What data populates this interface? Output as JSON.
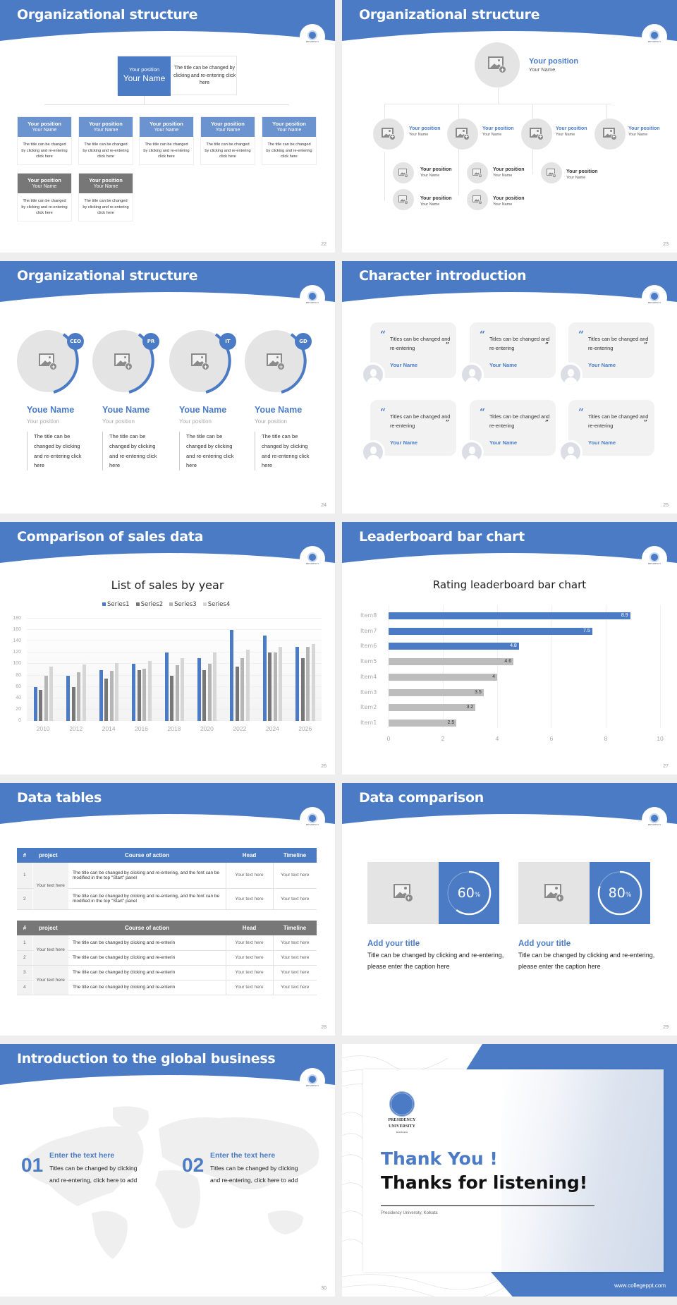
{
  "colors": {
    "accent": "#4a7bc4",
    "accent_light": "#6b93cf",
    "gray_dark": "#777777",
    "gray_mid": "#a5a5a5",
    "gray_light": "#d0d0d0",
    "placeholder_bg": "#e4e4e4"
  },
  "logo": {
    "line1": "PRESIDENCY",
    "line2": "UNIVERSITY"
  },
  "slides": {
    "s22": {
      "title": "Organizational structure",
      "page": "22",
      "top": {
        "position": "Your position",
        "name": "Your Name",
        "desc": "The title can be changed by clicking and re-entering click here"
      },
      "cards": [
        {
          "position": "Your position",
          "name": "Your Name",
          "desc": "The title can be changed by clicking and re-entering click here"
        },
        {
          "position": "Your position",
          "name": "Your Name",
          "desc": "The title can be changed by clicking and re-entering click here"
        },
        {
          "position": "Your position",
          "name": "Your Name",
          "desc": "The title can be changed by clicking and re-entering click here"
        },
        {
          "position": "Your position",
          "name": "Your Name",
          "desc": "The title can be changed by clicking and re-entering click here"
        },
        {
          "position": "Your position",
          "name": "Your Name",
          "desc": "The title can be changed by clicking and re-entering click here"
        },
        {
          "position": "Your position",
          "name": "Your Name",
          "desc": "The title can be changed by clicking and re-entering click here"
        },
        {
          "position": "Your position",
          "name": "Your Name",
          "desc": "The title can be changed by clicking and re-entering click here"
        }
      ]
    },
    "s23": {
      "title": "Organizational structure",
      "page": "23",
      "top": {
        "position": "Your position",
        "name": "Your Name"
      },
      "level2": [
        {
          "position": "Your position",
          "name": "Your Name"
        },
        {
          "position": "Your position",
          "name": "Your Name"
        },
        {
          "position": "Your position",
          "name": "Your Name"
        },
        {
          "position": "Your position",
          "name": "Your Name"
        }
      ],
      "level3": [
        {
          "position": "Your position",
          "name": "Your Name"
        },
        {
          "position": "Your position",
          "name": "Your Name"
        },
        {
          "position": "Your position",
          "name": "Your Name"
        },
        {
          "position": "Your position",
          "name": "Your Name"
        },
        {
          "position": "Your position",
          "name": "Your Name"
        }
      ]
    },
    "s24": {
      "title": "Organizational structure",
      "page": "24",
      "profiles": [
        {
          "badge": "CEO",
          "name": "Youe Name",
          "position": "Your position",
          "desc": "The title can be changed by clicking and re-entering click here"
        },
        {
          "badge": "PR",
          "name": "Youe Name",
          "position": "Your position",
          "desc": "The title can be changed by clicking and re-entering click here"
        },
        {
          "badge": "IT",
          "name": "Youe Name",
          "position": "Your position",
          "desc": "The title can be changed by clicking and re-entering click here"
        },
        {
          "badge": "GD",
          "name": "Youe Name",
          "position": "Your position",
          "desc": "The title can be changed by clicking and re-entering click here"
        }
      ]
    },
    "s25": {
      "title": "Character introduction",
      "page": "25",
      "quote_open": "“",
      "quote_close": "”",
      "cards": [
        {
          "text": "Titles can be changed and re-entering",
          "name": "Your Name"
        },
        {
          "text": "Titles can be changed and re-entering",
          "name": "Your Name"
        },
        {
          "text": "Titles can be changed and re-entering",
          "name": "Your Name"
        },
        {
          "text": "Titles can be changed and re-entering",
          "name": "Your Name"
        },
        {
          "text": "Titles can be changed and re-entering",
          "name": "Your Name"
        },
        {
          "text": "Titles can be changed and re-entering",
          "name": "Your Name"
        }
      ]
    },
    "s26": {
      "title": "Comparison of sales data",
      "page": "26"
    },
    "s27": {
      "title": "Leaderboard bar chart",
      "page": "27"
    },
    "s28": {
      "title": "Data tables",
      "page": "28",
      "headers": [
        "#",
        "project",
        "Course of action",
        "Head",
        "Timeline"
      ],
      "table1": {
        "project": "Your text here",
        "rows": [
          {
            "num": "1",
            "action": "The title can be changed by clicking and re-entering, and the font can be modified in the top \"Start\" panel",
            "head": "Your text here",
            "timeline": "Your text here"
          },
          {
            "num": "2",
            "action": "The title can be changed by clicking and re-entering, and the font can be modified in the top \"Start\" panel",
            "head": "Your text here",
            "timeline": "Your text here"
          }
        ]
      },
      "table2": {
        "projects": [
          "Your text here",
          "Your text here"
        ],
        "rows": [
          {
            "num": "1",
            "action": "The title can be changed by clicking and re-enterin",
            "head": "Your text here",
            "timeline": "Your text here"
          },
          {
            "num": "2",
            "action": "The title can be changed by clicking and re-enterin",
            "head": "Your text here",
            "timeline": "Your text here"
          },
          {
            "num": "3",
            "action": "The title can be changed by clicking and re-enterin",
            "head": "Your text here",
            "timeline": "Your text here"
          },
          {
            "num": "4",
            "action": "The title can be changed by clicking and re-enterin",
            "head": "Your text here",
            "timeline": "Your text here"
          }
        ]
      }
    },
    "s29": {
      "title": "Data comparison",
      "page": "29",
      "items": [
        {
          "value": "60",
          "unit": "%",
          "percent": 60,
          "heading": "Add your title",
          "desc": "Title can be changed by clicking and re-entering, please enter the caption here"
        },
        {
          "value": "80",
          "unit": "%",
          "percent": 80,
          "heading": "Add your title",
          "desc": "Title can be changed by clicking and re-entering, please enter the caption here"
        }
      ]
    },
    "s30": {
      "title": "Introduction to the global business",
      "page": "30",
      "blocks": [
        {
          "num": "01",
          "heading": "Enter the text here",
          "line1": "Titles can be changed by clicking",
          "line2": "and re-entering, click here to add"
        },
        {
          "num": "02",
          "heading": "Enter the text here",
          "line1": "Titles can be changed by clicking",
          "line2": "and re-entering, click here to add"
        }
      ]
    },
    "s31": {
      "logo_line1": "PRESIDENCY",
      "logo_line2": "UNIVERSITY",
      "logo_line3": "KOLKATA",
      "thank_you": "Thank You !",
      "thanks": "Thanks for listening!",
      "subtitle": "Presidency University, Kolkata",
      "url": "www.collegeppt.com"
    }
  },
  "chart_data": [
    {
      "type": "bar",
      "title": "List of sales by year",
      "categories": [
        "2010",
        "2012",
        "2014",
        "2016",
        "2018",
        "2020",
        "2022",
        "2024",
        "2026"
      ],
      "series": [
        {
          "name": "Series1",
          "color": "#4a7bc4",
          "values": [
            60,
            80,
            90,
            100,
            120,
            110,
            160,
            150,
            130
          ]
        },
        {
          "name": "Series2",
          "color": "#777777",
          "values": [
            55,
            60,
            75,
            90,
            80,
            90,
            96,
            120,
            110
          ]
        },
        {
          "name": "Series3",
          "color": "#b5b5b5",
          "values": [
            80,
            86,
            88,
            92,
            98,
            100,
            110,
            120,
            130
          ]
        },
        {
          "name": "Series4",
          "color": "#d6d6d6",
          "values": [
            95,
            99,
            102,
            105,
            110,
            120,
            126,
            130,
            135
          ]
        }
      ],
      "xlabel": "",
      "ylabel": "",
      "ylim": [
        0,
        180
      ],
      "yticks": [
        0,
        20,
        40,
        60,
        80,
        100,
        120,
        140,
        160,
        180
      ],
      "grid": true,
      "legend_position": "top"
    },
    {
      "type": "bar",
      "orientation": "horizontal",
      "title": "Rating leaderboard bar chart",
      "categories": [
        "Item8",
        "Item7",
        "Item6",
        "Item5",
        "Item4",
        "Item3",
        "Item2",
        "Item1"
      ],
      "values": [
        8.9,
        7.5,
        4.8,
        4.6,
        4,
        3.5,
        3.2,
        2.5
      ],
      "labels": [
        "8.9",
        "7.5",
        "4.8",
        "4.6",
        "4",
        "3.5",
        "3.2",
        "2.5"
      ],
      "highlight_top": 3,
      "xlim": [
        0,
        10
      ],
      "xticks": [
        0,
        2,
        4,
        6,
        8,
        10
      ],
      "grid": true,
      "legend_position": "none"
    }
  ]
}
